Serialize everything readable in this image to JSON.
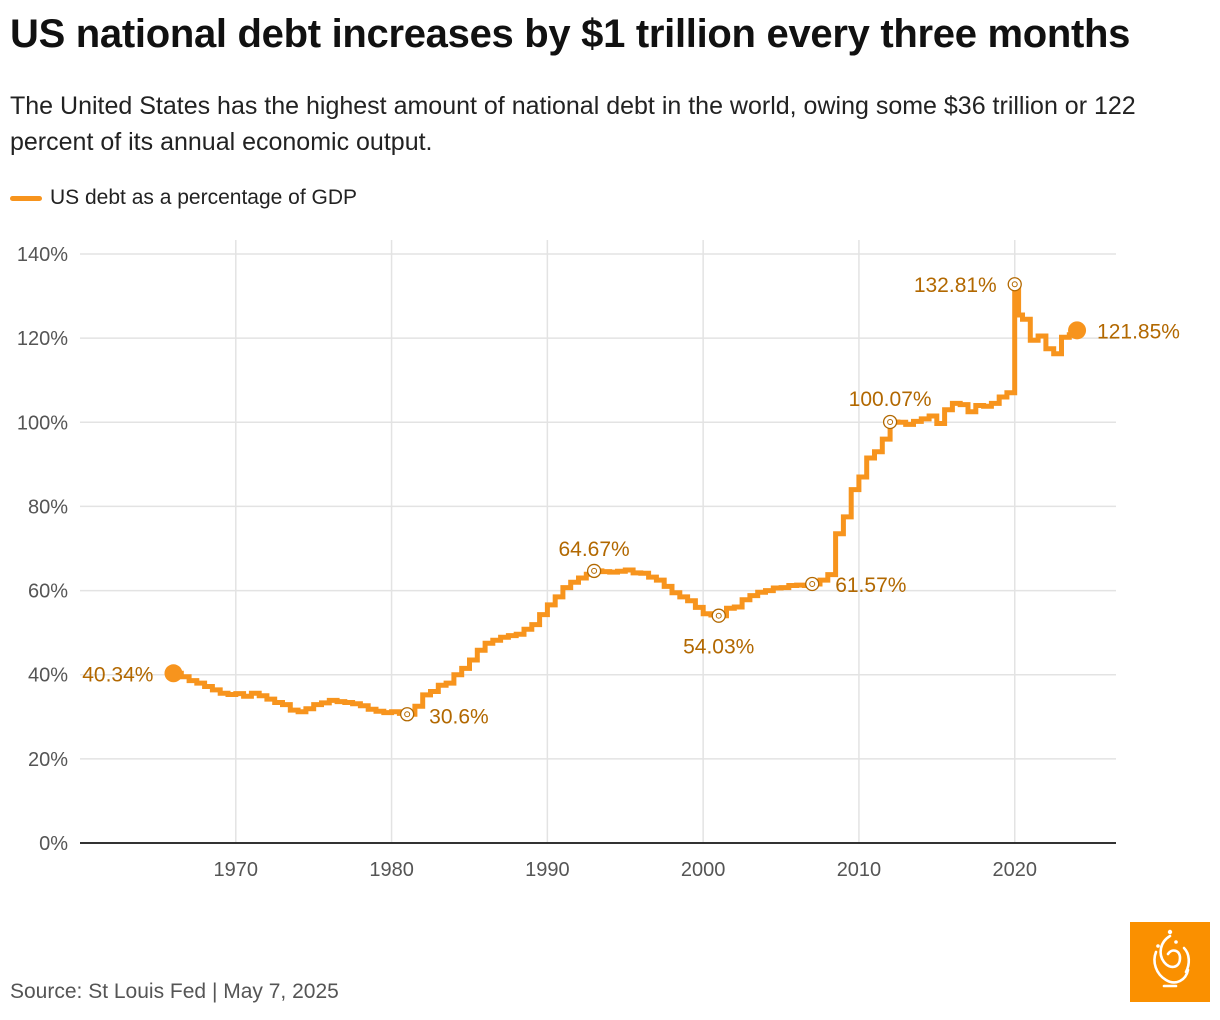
{
  "title": "US national debt increases by $1 trillion every three months",
  "subtitle": "The United States has the highest amount of national debt in the world, owing some $36 trillion or 122 percent of its annual economic output.",
  "legend": {
    "label": "US debt as a percentage of GDP"
  },
  "source": "Source: St Louis Fed | May 7, 2025",
  "colors": {
    "line": "#f7941d",
    "annotation": "#b26800",
    "grid": "#e3e3e3",
    "axis": "#333333",
    "logo": "#fa9000"
  },
  "logo_icon": "al-jazeera-logo",
  "chart_data": {
    "type": "line",
    "series": [
      {
        "name": "US debt as a percentage of GDP",
        "x": [
          1966.0,
          1966.5,
          1967.0,
          1967.5,
          1968.0,
          1968.5,
          1969.0,
          1969.5,
          1970.0,
          1970.5,
          1971.0,
          1971.5,
          1972.0,
          1972.5,
          1973.0,
          1973.5,
          1974.0,
          1974.5,
          1975.0,
          1975.5,
          1976.0,
          1976.5,
          1977.0,
          1977.5,
          1978.0,
          1978.5,
          1979.0,
          1979.5,
          1980.0,
          1980.5,
          1981.0,
          1981.5,
          1982.0,
          1982.5,
          1983.0,
          1983.5,
          1984.0,
          1984.5,
          1985.0,
          1985.5,
          1986.0,
          1986.5,
          1987.0,
          1987.5,
          1988.0,
          1988.5,
          1989.0,
          1989.5,
          1990.0,
          1990.5,
          1991.0,
          1991.5,
          1992.0,
          1992.5,
          1993.0,
          1993.5,
          1994.0,
          1994.5,
          1995.0,
          1995.5,
          1996.0,
          1996.5,
          1997.0,
          1997.5,
          1998.0,
          1998.5,
          1999.0,
          1999.5,
          2000.0,
          2000.5,
          2001.0,
          2001.5,
          2002.0,
          2002.5,
          2003.0,
          2003.5,
          2004.0,
          2004.5,
          2005.0,
          2005.5,
          2006.0,
          2006.5,
          2007.0,
          2007.5,
          2008.0,
          2008.5,
          2009.0,
          2009.5,
          2010.0,
          2010.5,
          2011.0,
          2011.5,
          2012.0,
          2012.5,
          2013.0,
          2013.5,
          2014.0,
          2014.5,
          2015.0,
          2015.5,
          2016.0,
          2016.5,
          2017.0,
          2017.5,
          2018.0,
          2018.5,
          2019.0,
          2019.5,
          2020.0,
          2020.25,
          2020.5,
          2021.0,
          2021.5,
          2022.0,
          2022.5,
          2023.0,
          2023.5,
          2024.0
        ],
        "values": [
          40.34,
          39.5,
          38.6,
          38.0,
          37.2,
          36.4,
          35.6,
          35.3,
          35.5,
          34.9,
          35.6,
          35.0,
          34.2,
          33.4,
          32.9,
          31.6,
          31.2,
          31.9,
          32.9,
          33.3,
          33.9,
          33.6,
          33.4,
          33.1,
          32.6,
          31.8,
          31.3,
          31.0,
          31.2,
          30.8,
          30.6,
          32.5,
          35.2,
          36.0,
          37.5,
          38.0,
          40.0,
          41.5,
          43.5,
          45.8,
          47.5,
          48.2,
          48.9,
          49.3,
          49.6,
          50.8,
          51.9,
          54.3,
          56.6,
          58.5,
          60.7,
          62.0,
          63.0,
          63.9,
          64.67,
          64.5,
          64.4,
          64.6,
          64.9,
          64.2,
          64.1,
          63.2,
          62.5,
          61.0,
          59.5,
          58.5,
          57.6,
          56.0,
          54.5,
          54.2,
          54.03,
          55.8,
          56.1,
          57.8,
          58.8,
          59.6,
          60.0,
          60.6,
          60.7,
          61.2,
          61.3,
          61.2,
          61.57,
          62.5,
          63.8,
          73.5,
          77.5,
          84.0,
          87.0,
          91.5,
          93.0,
          96.0,
          100.07,
          100.0,
          99.5,
          100.2,
          100.8,
          101.5,
          99.7,
          103.0,
          104.5,
          104.2,
          102.5,
          104.0,
          103.8,
          104.5,
          106.0,
          107.0,
          132.81,
          125.5,
          124.5,
          119.5,
          120.5,
          117.5,
          116.3,
          120.2,
          120.8,
          121.85
        ]
      }
    ],
    "annotations": [
      {
        "x": 1966.0,
        "y": 40.34,
        "label": "40.34%",
        "marker": "filled"
      },
      {
        "x": 1981.0,
        "y": 30.6,
        "label": "30.6%",
        "marker": "open"
      },
      {
        "x": 1993.0,
        "y": 64.67,
        "label": "64.67%",
        "marker": "open"
      },
      {
        "x": 2001.0,
        "y": 54.03,
        "label": "54.03%",
        "marker": "open"
      },
      {
        "x": 2007.0,
        "y": 61.57,
        "label": "61.57%",
        "marker": "open"
      },
      {
        "x": 2012.0,
        "y": 100.07,
        "label": "100.07%",
        "marker": "open"
      },
      {
        "x": 2020.0,
        "y": 132.81,
        "label": "132.81%",
        "marker": "open"
      },
      {
        "x": 2024.0,
        "y": 121.85,
        "label": "121.85%",
        "marker": "filled"
      }
    ],
    "x_ticks": [
      1970,
      1980,
      1990,
      2000,
      2010,
      2020
    ],
    "y_ticks": [
      0,
      20,
      40,
      60,
      80,
      100,
      120,
      140
    ],
    "y_tick_labels": [
      "0%",
      "20%",
      "40%",
      "60%",
      "80%",
      "100%",
      "120%",
      "140%"
    ],
    "xlim": [
      1960,
      2026.5
    ],
    "ylim": [
      0,
      140
    ],
    "grid": true,
    "xlabel": "",
    "ylabel": ""
  }
}
